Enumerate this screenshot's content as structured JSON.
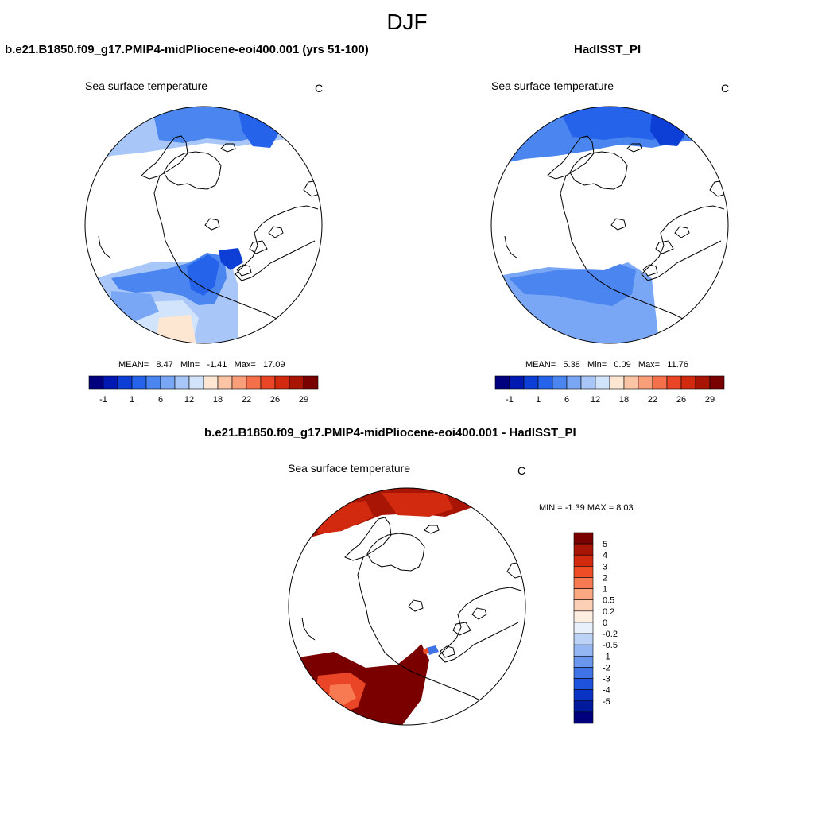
{
  "title": "DJF",
  "panels": [
    {
      "id": "model",
      "title": "b.e21.B1850.f09_g17.PMIP4-midPliocene-eoi400.001 (yrs 51-100)",
      "var_label": "Sea surface temperature",
      "units": "C",
      "stats": {
        "mean_label": "MEAN=",
        "mean": "8.47",
        "min_label": "Min=",
        "min": "-1.41",
        "max_label": "Max=",
        "max": "17.09"
      }
    },
    {
      "id": "obs",
      "title": "HadISST_PI",
      "var_label": "Sea surface temperature",
      "units": "C",
      "stats": {
        "mean_label": "MEAN=",
        "mean": "5.38",
        "min_label": "Min=",
        "min": "0.09",
        "max_label": "Max=",
        "max": "11.76"
      }
    }
  ],
  "abs_colorbar": {
    "colors": [
      "#00007f",
      "#0019b3",
      "#0d3fd6",
      "#2563ea",
      "#4a85f0",
      "#7aa7f5",
      "#a8c7f8",
      "#d2e4fb",
      "#fde6d2",
      "#fbc4a4",
      "#f89e78",
      "#f4704b",
      "#ea4526",
      "#d22a0f",
      "#a81505",
      "#7a0000"
    ],
    "tick_labels": [
      "-1",
      "1",
      "6",
      "12",
      "18",
      "22",
      "26",
      "29"
    ]
  },
  "diff_panel": {
    "title": "b.e21.B1850.f09_g17.PMIP4-midPliocene-eoi400.001 - HadISST_PI",
    "var_label": "Sea surface temperature",
    "units": "C",
    "stats_text": "MIN =  -1.39 MAX =   8.03",
    "colorbar": {
      "colors": [
        "#7a0000",
        "#a81505",
        "#d22a0f",
        "#ee4d25",
        "#f87a52",
        "#fba882",
        "#fcd0b4",
        "#fdeee2",
        "#e8f0fb",
        "#bcd3f7",
        "#94b6f3",
        "#6b96ee",
        "#3f73e6",
        "#1e52dc",
        "#0a33c4",
        "#001a9e",
        "#00007f"
      ],
      "labels": [
        "5",
        "4",
        "3",
        "2",
        "1",
        "0.5",
        "0.2",
        "0",
        "-0.2",
        "-0.5",
        "-1",
        "-2",
        "-3",
        "-4",
        "-5"
      ]
    }
  }
}
